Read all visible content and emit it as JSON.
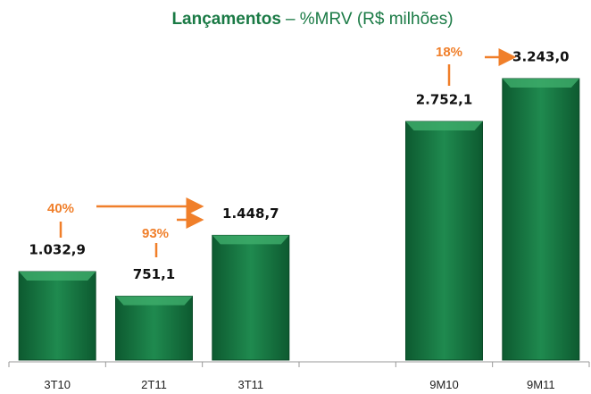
{
  "chart_data": {
    "type": "bar",
    "title": "Lançamentos",
    "subtitle": "– %MRV (R$ milhões)",
    "categories": [
      "3T10",
      "2T11",
      "3T11",
      null,
      "9M10",
      "9M11"
    ],
    "values": [
      1032.9,
      751.1,
      1448.7,
      null,
      2752.1,
      3243.0
    ],
    "value_labels": [
      "1.032,9",
      "751,1",
      "1.448,7",
      null,
      "2.752,1",
      "3.243,0"
    ],
    "color": "#1a7a45",
    "annotations": [
      "40%",
      "93%",
      "18%"
    ]
  }
}
